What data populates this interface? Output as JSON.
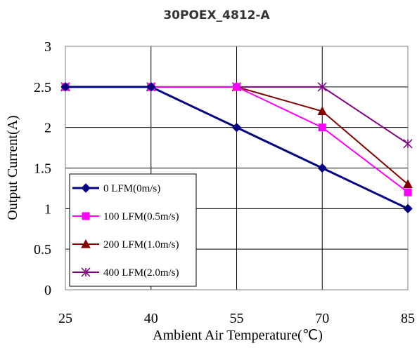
{
  "chart_data": {
    "type": "line",
    "title": "30POEX_4812-A",
    "xlabel": "Ambient Air Temperature(℃)",
    "ylabel": "Output Current(A)",
    "x": [
      25,
      40,
      55,
      70,
      85
    ],
    "xlim": [
      25,
      85
    ],
    "ylim": [
      0,
      3
    ],
    "y_ticks": [
      "0",
      "0.5",
      "1",
      "1.5",
      "2",
      "2.5",
      "3"
    ],
    "x_ticks": [
      "25",
      "40",
      "55",
      "70",
      "85"
    ],
    "grid": "horizontal",
    "legend_position": "bottom-left (inside plot)",
    "series": [
      {
        "name": "0 LFM(0m/s)",
        "values": [
          2.5,
          2.5,
          2.0,
          1.5,
          1.0
        ],
        "color": "#000080",
        "marker": "diamond"
      },
      {
        "name": "100 LFM(0.5m/s)",
        "values": [
          2.5,
          2.5,
          2.5,
          2.0,
          1.2
        ],
        "color": "#FF00FF",
        "marker": "square"
      },
      {
        "name": "200 LFM(1.0m/s)",
        "values": [
          2.5,
          2.5,
          2.5,
          2.2,
          1.3
        ],
        "color": "#800000",
        "marker": "triangle"
      },
      {
        "name": "400 LFM(2.0m/s)",
        "values": [
          2.5,
          2.5,
          2.5,
          2.5,
          1.8
        ],
        "color": "#800080",
        "marker": "asterisk"
      }
    ]
  }
}
